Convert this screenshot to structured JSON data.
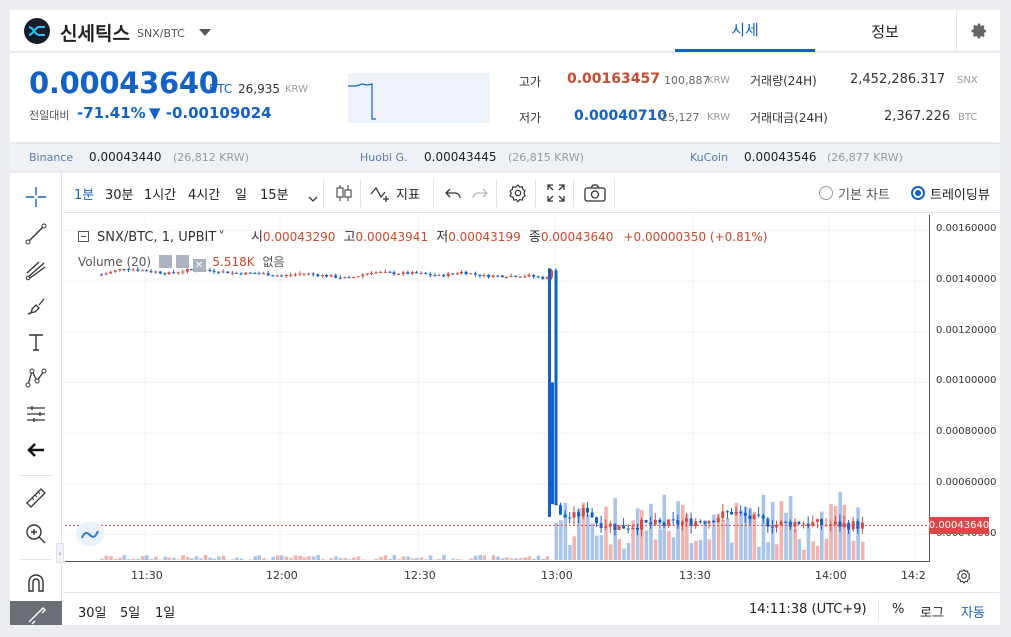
{
  "header": {
    "coin_name": "신세틱스",
    "pair": "SNX/BTC",
    "tabs": [
      {
        "label": "시세",
        "active": true
      },
      {
        "label": "정보",
        "active": false
      }
    ],
    "settings_icon": "gear-icon"
  },
  "summary": {
    "price": "0.00043640",
    "price_unit": "BTC",
    "price_krw": "26,935",
    "price_krw_unit": "KRW",
    "change_label": "전일대비",
    "change_pct": "-71.41%",
    "change_value": "▼ -0.00109024",
    "high_label": "고가",
    "high_price": "0.00163457",
    "high_krw": "100,887",
    "low_label": "저가",
    "low_price": "0.00040710",
    "low_krw": "25,127",
    "krw_unit": "KRW",
    "volume_label": "거래량(24H)",
    "volume_value": "2,452,286.317",
    "volume_unit": "SNX",
    "amount_label": "거래대금(24H)",
    "amount_value": "2,367.226",
    "amount_unit": "BTC",
    "colors": {
      "down": "#1261c4",
      "up": "#c84a31"
    }
  },
  "exchanges": [
    {
      "name": "Binance",
      "price": "0.00043440",
      "krw": "(26,812 KRW)"
    },
    {
      "name": "Huobi G.",
      "price": "0.00043445",
      "krw": "(26,815 KRW)"
    },
    {
      "name": "KuCoin",
      "price": "0.00043546",
      "krw": "(26,877 KRW)"
    }
  ],
  "toolbar": {
    "intervals": [
      "1분",
      "30분",
      "1시간",
      "4시간",
      "일",
      "15분"
    ],
    "indicator_label": "지표",
    "chart_types": [
      {
        "label": "기본 차트",
        "selected": false
      },
      {
        "label": "트레이딩뷰",
        "selected": true
      }
    ]
  },
  "left_tools": [
    "crosshair-icon",
    "trend-line-icon",
    "fib-icon",
    "brush-icon",
    "text-icon",
    "pattern-icon",
    "prediction-icon",
    "back-arrow-icon",
    "ruler-icon",
    "zoom-in-icon",
    "magnet-icon",
    "lock-draw-icon"
  ],
  "chart_legend": {
    "symbol": "SNX/BTC, 1, UPBIT",
    "open_label": "시",
    "open": "0.00043290",
    "high_label": "고",
    "high": "0.00043941",
    "low_label": "저",
    "low": "0.00043199",
    "close_label": "종",
    "close": "0.00043640",
    "change": "+0.00000350 (+0.81%)",
    "volume_label": "Volume (20)",
    "volume_value": "5.518K",
    "volume_extra": "없음"
  },
  "chart_data": {
    "type": "line",
    "title": "",
    "xlabel": "",
    "ylabel": "",
    "ylim": [
      0.0003,
      0.00166
    ],
    "y_ticks": [
      "0.00160000",
      "0.00140000",
      "0.00120000",
      "0.00100000",
      "0.00080000",
      "0.00060000",
      "0.00040000"
    ],
    "x_ticks": [
      "11:30",
      "12:00",
      "12:30",
      "13:00",
      "13:30",
      "14:00",
      "14:2"
    ],
    "last_price": "0.00043640",
    "series": [
      {
        "x": [
          "11:20",
          "11:25",
          "11:30",
          "11:35",
          "11:40",
          "11:45",
          "11:50",
          "11:55",
          "12:00",
          "12:05",
          "12:10",
          "12:15",
          "12:20",
          "12:25",
          "12:30",
          "12:35",
          "12:40",
          "12:45",
          "12:50",
          "12:55",
          "12:59",
          "13:00",
          "13:01",
          "13:02",
          "13:05",
          "13:08",
          "13:10",
          "13:15",
          "13:20",
          "13:25",
          "13:30",
          "13:35",
          "13:40",
          "13:45",
          "13:50",
          "13:55",
          "14:00",
          "14:05",
          "14:10"
        ],
        "values": [
          0.001425,
          0.00145,
          0.00144,
          0.00143,
          0.001445,
          0.00144,
          0.00143,
          0.00143,
          0.00142,
          0.00143,
          0.00142,
          0.00141,
          0.001435,
          0.00143,
          0.00143,
          0.00142,
          0.001435,
          0.00142,
          0.00142,
          0.00142,
          0.00141,
          0.00145,
          0.00052,
          0.00047,
          0.00047,
          0.0005,
          0.00045,
          0.00043,
          0.00044,
          0.00044,
          0.00045,
          0.00046,
          0.00049,
          0.00046,
          0.00044,
          0.00045,
          0.00044,
          0.00044,
          0.0004364
        ]
      }
    ]
  },
  "bottombar": {
    "ranges": [
      "30일",
      "5일",
      "1일"
    ],
    "clock": "14:11:38 (UTC+9)",
    "percent_label": "%",
    "log_label": "로그",
    "auto_label": "자동"
  }
}
